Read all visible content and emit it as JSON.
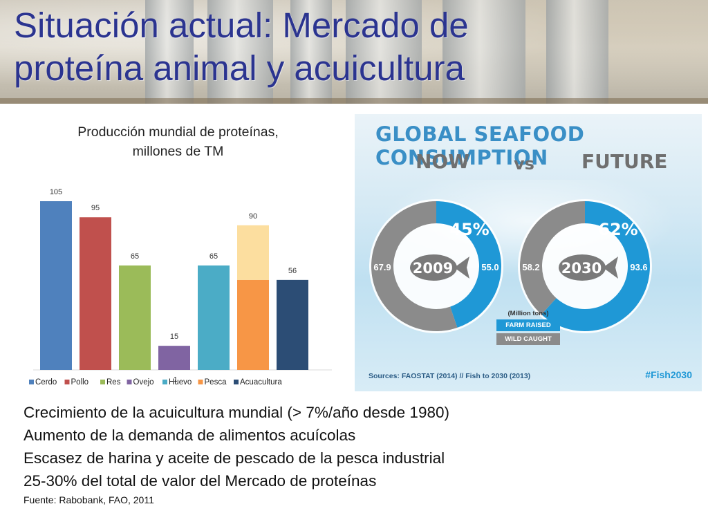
{
  "slide": {
    "title_line1": "Situación actual: Mercado de",
    "title_line2": "proteína animal y acuicultura",
    "accent_color": "#2b3490"
  },
  "chart_data": [
    {
      "type": "bar",
      "title_line1": "Producción mundial de proteínas,",
      "title_line2": "millones de TM",
      "categories": [
        "Cerdo",
        "Pollo",
        "Res",
        "Ovejo",
        "Huevo",
        "Pesca",
        "Acuacultura"
      ],
      "values": [
        105,
        95,
        65,
        15,
        65,
        90,
        56
      ],
      "data_labels": [
        "105",
        "95",
        "65",
        "15",
        "65",
        "90",
        "56"
      ],
      "colors": [
        "#4f81bd",
        "#c0504d",
        "#9bbb59",
        "#8064a2",
        "#4bacc6",
        "#f79646",
        "#2c4d75"
      ],
      "pesca_highlight_base": 56,
      "pesca_highlight_color": "#fcd88e",
      "legend_position": "bottom",
      "legend_stray_mark": "1",
      "ylim": [
        0,
        105
      ],
      "grid": false
    },
    {
      "type": "pie",
      "variant": "donut",
      "heading": "GLOBAL SEAFOOD CONSUMPTION",
      "now_label": "NOW",
      "vs_label": "vs",
      "future_label": "FUTURE",
      "units_label": "(Million tons)",
      "legend": [
        {
          "label": "FARM RAISED",
          "color": "#1f98d6"
        },
        {
          "label": "WILD CAUGHT",
          "color": "#8b8b8b"
        }
      ],
      "donuts": [
        {
          "year": "2009",
          "percent_label": "45%",
          "farm_raised": 55.0,
          "wild_caught": 67.9,
          "farm_label": "55.0",
          "wild_label": "67.9"
        },
        {
          "year": "2030",
          "percent_label": "62%",
          "farm_raised": 93.6,
          "wild_caught": 58.2,
          "farm_label": "93.6",
          "wild_label": "58.2"
        }
      ],
      "sources": "Sources: FAOSTAT (2014) // Fish to 2030 (2013)",
      "hashtag": "#Fish2030"
    }
  ],
  "bullets": [
    "Crecimiento de la acuicultura mundial (> 7%/año desde 1980)",
    "Aumento de la demanda de alimentos acuícolas",
    "Escasez de harina y aceite de pescado de la pesca industrial",
    "25-30% del total de valor del Mercado de proteínas"
  ],
  "source_note": "Fuente: Rabobank, FAO, 2011"
}
